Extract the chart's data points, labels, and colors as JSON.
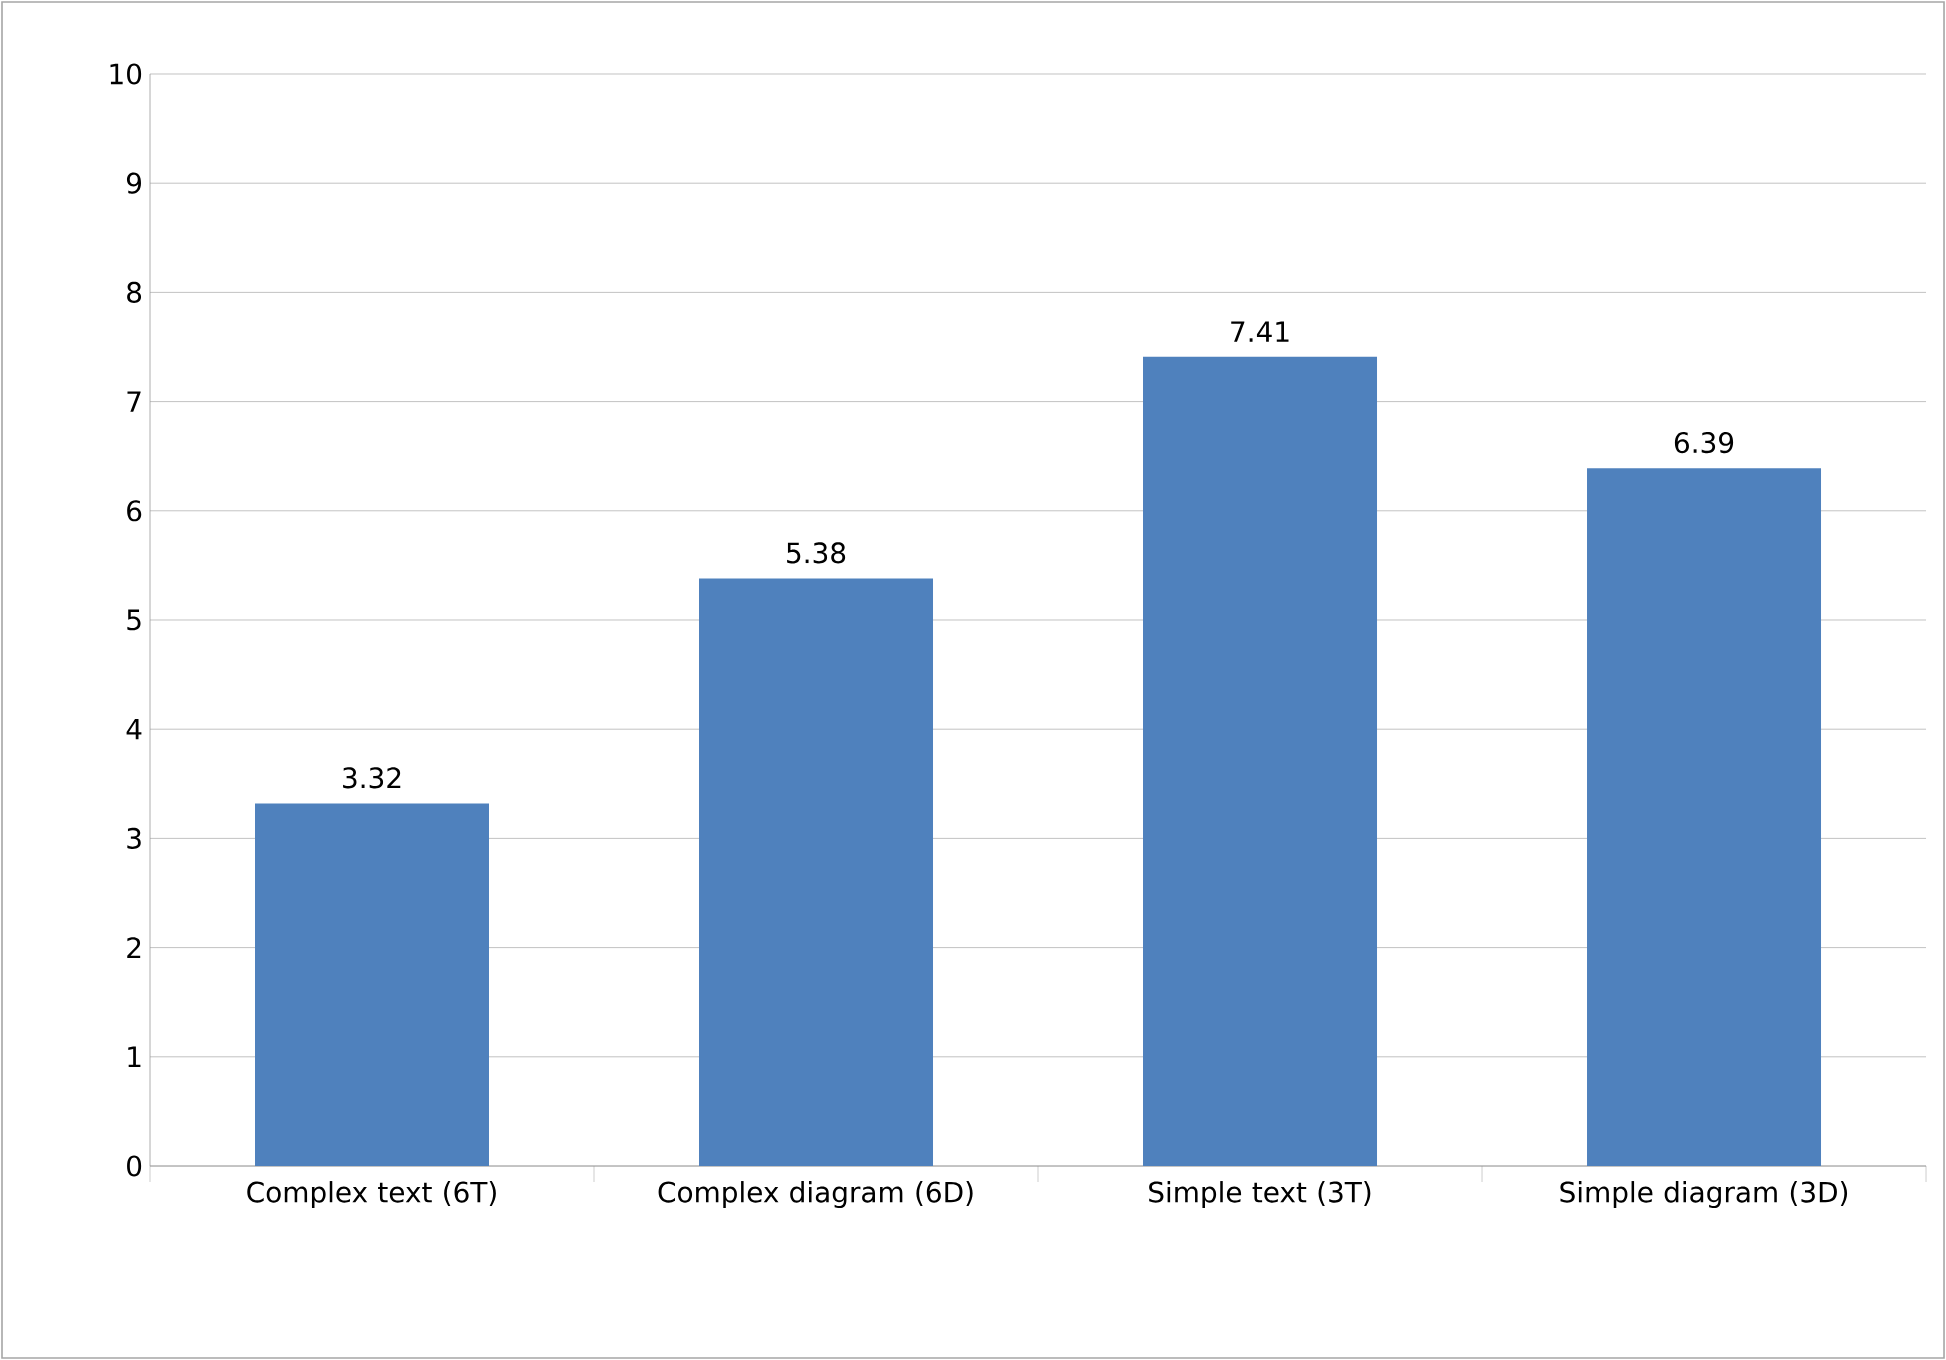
{
  "chart_data": {
    "type": "bar",
    "categories": [
      "Complex text (6T)",
      "Complex diagram (6D)",
      "Simple text (3T)",
      "Simple diagram (3D)"
    ],
    "values": [
      3.32,
      5.38,
      7.41,
      6.39
    ],
    "color": "#4f81bd",
    "ylim": [
      0,
      10
    ],
    "yticks": [
      0,
      1,
      2,
      3,
      4,
      5,
      6,
      7,
      8,
      9,
      10
    ],
    "grid": "y",
    "data_labels": true
  }
}
